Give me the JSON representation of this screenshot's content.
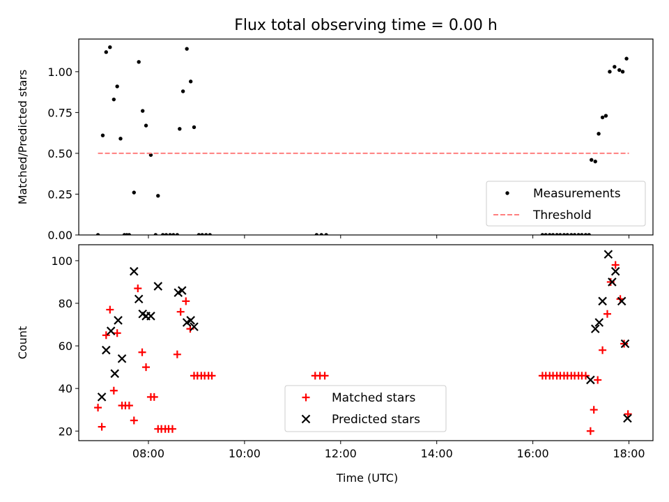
{
  "title": "Flux total observing time = 0.00 h",
  "chart_data": [
    {
      "type": "scatter",
      "ylabel": "Matched/Predicted stars",
      "xlabel": "",
      "xlim": [
        6.55,
        18.5
      ],
      "ylim": [
        0,
        1.2
      ],
      "xticks": [
        8,
        10,
        12,
        14,
        16,
        18
      ],
      "yticks": [
        0,
        0.25,
        0.5,
        0.75,
        1.0
      ],
      "ytick_labels": [
        "0.00",
        "0.25",
        "0.50",
        "0.75",
        "1.00"
      ],
      "grid": false,
      "legend": {
        "placement": "lower right",
        "entries": [
          "Measurements",
          "Threshold"
        ]
      },
      "series": [
        {
          "name": "Measurements",
          "marker": "dot",
          "color": "#000000",
          "x": [
            6.95,
            7.05,
            7.12,
            7.2,
            7.28,
            7.35,
            7.42,
            7.5,
            7.55,
            7.6,
            7.7,
            7.8,
            7.88,
            7.95,
            8.05,
            8.15,
            8.2,
            8.3,
            8.37,
            8.45,
            8.52,
            8.6,
            8.65,
            8.72,
            8.8,
            8.88,
            8.95,
            9.05,
            9.12,
            9.2,
            9.28,
            11.5,
            11.6,
            11.7,
            16.2,
            16.27,
            16.35,
            16.42,
            16.5,
            16.57,
            16.65,
            16.72,
            16.8,
            16.87,
            16.95,
            17.02,
            17.1,
            17.17,
            17.22,
            17.3,
            17.37,
            17.45,
            17.52,
            17.6,
            17.7,
            17.8,
            17.87,
            17.95
          ],
          "y": [
            0,
            0.61,
            1.12,
            1.15,
            0.83,
            0.91,
            0.59,
            0,
            0,
            0,
            0.26,
            1.06,
            0.76,
            0.67,
            0.49,
            0,
            0.24,
            0,
            0,
            0,
            0,
            0,
            0.65,
            0.88,
            1.14,
            0.94,
            0.66,
            0,
            0,
            0,
            0,
            0,
            0,
            0,
            0,
            0,
            0,
            0,
            0,
            0,
            0,
            0,
            0,
            0,
            0,
            0,
            0,
            0,
            0.46,
            0.45,
            0.62,
            0.72,
            0.73,
            1.0,
            1.03,
            1.01,
            1.0,
            1.08
          ]
        },
        {
          "name": "Threshold",
          "style": "dashed",
          "color": "#ff7f7f",
          "x": [
            6.95,
            18.0
          ],
          "y": [
            0.5,
            0.5
          ]
        }
      ]
    },
    {
      "type": "scatter",
      "ylabel": "Count",
      "xlabel": "Time (UTC)",
      "xlim": [
        6.55,
        18.5
      ],
      "ylim": [
        15.5,
        107.5
      ],
      "xticks": [
        8,
        10,
        12,
        14,
        16,
        18
      ],
      "xtick_labels": [
        "08:00",
        "10:00",
        "12:00",
        "14:00",
        "16:00",
        "18:00"
      ],
      "yticks": [
        20,
        40,
        60,
        80,
        100
      ],
      "ytick_labels": [
        "20",
        "40",
        "60",
        "80",
        "100"
      ],
      "grid": false,
      "legend": {
        "placement": "lower center",
        "entries": [
          "Matched stars",
          "Predicted stars"
        ]
      },
      "series": [
        {
          "name": "Matched stars",
          "marker": "plus",
          "color": "#ff0000",
          "x": [
            6.95,
            7.03,
            7.12,
            7.2,
            7.28,
            7.35,
            7.45,
            7.52,
            7.6,
            7.7,
            7.78,
            7.87,
            7.95,
            8.05,
            8.12,
            8.2,
            8.27,
            8.35,
            8.42,
            8.5,
            8.6,
            8.67,
            8.78,
            8.87,
            8.95,
            9.02,
            9.1,
            9.17,
            9.25,
            9.32,
            11.47,
            11.57,
            11.67,
            16.2,
            16.27,
            16.35,
            16.42,
            16.5,
            16.57,
            16.65,
            16.72,
            16.8,
            16.87,
            16.95,
            17.02,
            17.1,
            17.2,
            17.27,
            17.35,
            17.45,
            17.55,
            17.62,
            17.72,
            17.82,
            17.9,
            17.98
          ],
          "y": [
            31,
            22,
            65,
            77,
            39,
            66,
            32,
            32,
            32,
            25,
            87,
            57,
            50,
            36,
            36,
            21,
            21,
            21,
            21,
            21,
            56,
            76,
            81,
            68,
            46,
            46,
            46,
            46,
            46,
            46,
            46,
            46,
            46,
            46,
            46,
            46,
            46,
            46,
            46,
            46,
            46,
            46,
            46,
            46,
            46,
            46,
            20,
            30,
            44,
            58,
            75,
            90,
            98,
            82,
            61,
            28
          ]
        },
        {
          "name": "Predicted stars",
          "marker": "x",
          "color": "#000000",
          "x": [
            7.03,
            7.12,
            7.22,
            7.3,
            7.37,
            7.45,
            7.7,
            7.8,
            7.88,
            7.95,
            8.05,
            8.2,
            8.62,
            8.7,
            8.8,
            8.88,
            8.95,
            17.2,
            17.3,
            17.38,
            17.45,
            17.57,
            17.65,
            17.72,
            17.85,
            17.92,
            17.97
          ],
          "y": [
            36,
            58,
            67,
            47,
            72,
            54,
            95,
            82,
            75,
            74,
            74,
            88,
            85,
            86,
            71,
            72,
            69,
            44,
            68,
            71,
            81,
            103,
            90,
            95,
            81,
            61,
            26
          ]
        }
      ]
    }
  ]
}
